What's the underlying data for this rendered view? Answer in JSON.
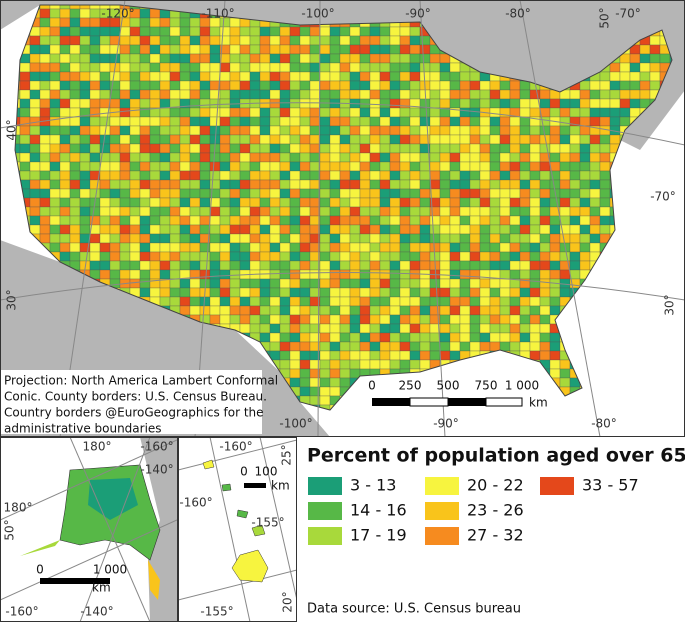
{
  "map": {
    "graticule_labels": [
      "-120°",
      "-110°",
      "-100°",
      "-90°",
      "-80°",
      "50°",
      "-70°",
      "40°",
      "-70°",
      "30°",
      "30°",
      "-100°",
      "-90°",
      "-80°"
    ],
    "projection_note": [
      "Projection: North America Lambert Conformal",
      "Conic. County borders: U.S. Census Bureau.",
      "Country borders @EuroGeographics for the",
      "administrative boundaries"
    ],
    "scale_bar": {
      "labels": [
        "0",
        "250",
        "500",
        "750",
        "1 000"
      ],
      "unit": "km"
    }
  },
  "alaska_inset": {
    "graticule_labels": [
      "180°",
      "-160°",
      "-140°",
      "180°",
      "50°",
      "-160°",
      "-140°"
    ],
    "scale_bar": {
      "labels": [
        "0",
        "1 000"
      ],
      "unit": "km"
    }
  },
  "hawaii_inset": {
    "graticule_labels": [
      "-160°",
      "25°",
      "-160°",
      "-155°",
      "-155°",
      "20°"
    ],
    "scale_bar": {
      "labels": [
        "0",
        "100"
      ],
      "unit": "km"
    }
  },
  "legend": {
    "title": "Percent of population aged over 65",
    "items": [
      {
        "label": "3 - 13",
        "color": "#1b9e77"
      },
      {
        "label": "14 - 16",
        "color": "#57b847"
      },
      {
        "label": "17 - 19",
        "color": "#a8d93b"
      },
      {
        "label": "20 - 22",
        "color": "#f7f43f"
      },
      {
        "label": "23 - 26",
        "color": "#f9c41b"
      },
      {
        "label": "27 - 32",
        "color": "#f68b1f"
      },
      {
        "label": "33 - 57",
        "color": "#e4481b"
      }
    ]
  },
  "data_source": "Data source: U.S. Census bureau"
}
